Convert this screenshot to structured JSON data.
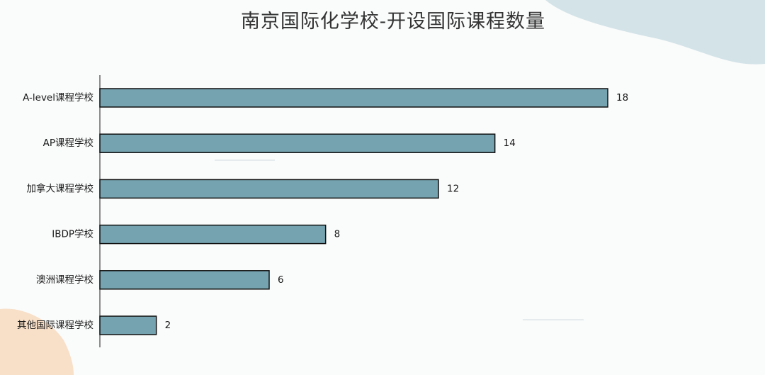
{
  "chart_data": {
    "type": "bar",
    "orientation": "horizontal",
    "title": "南京国际化学校-开设国际课程数量",
    "categories": [
      "A-level课程学校",
      "AP课程学校",
      "加拿大课程学校",
      "IBDP学校",
      "澳洲课程学校",
      "其他国际课程学校"
    ],
    "values": [
      18,
      14,
      12,
      8,
      6,
      2
    ],
    "xlim": [
      0,
      18
    ],
    "xlabel": "",
    "ylabel": "",
    "grid": false,
    "legend": "none",
    "bar_color": "#75a3b0",
    "bar_edge_color": "#111111",
    "data_labels": true
  },
  "colors": {
    "background": "#fafbfb",
    "blob_top_right": "#d3e3e8",
    "blob_bottom_left": "#f8dfc8"
  }
}
